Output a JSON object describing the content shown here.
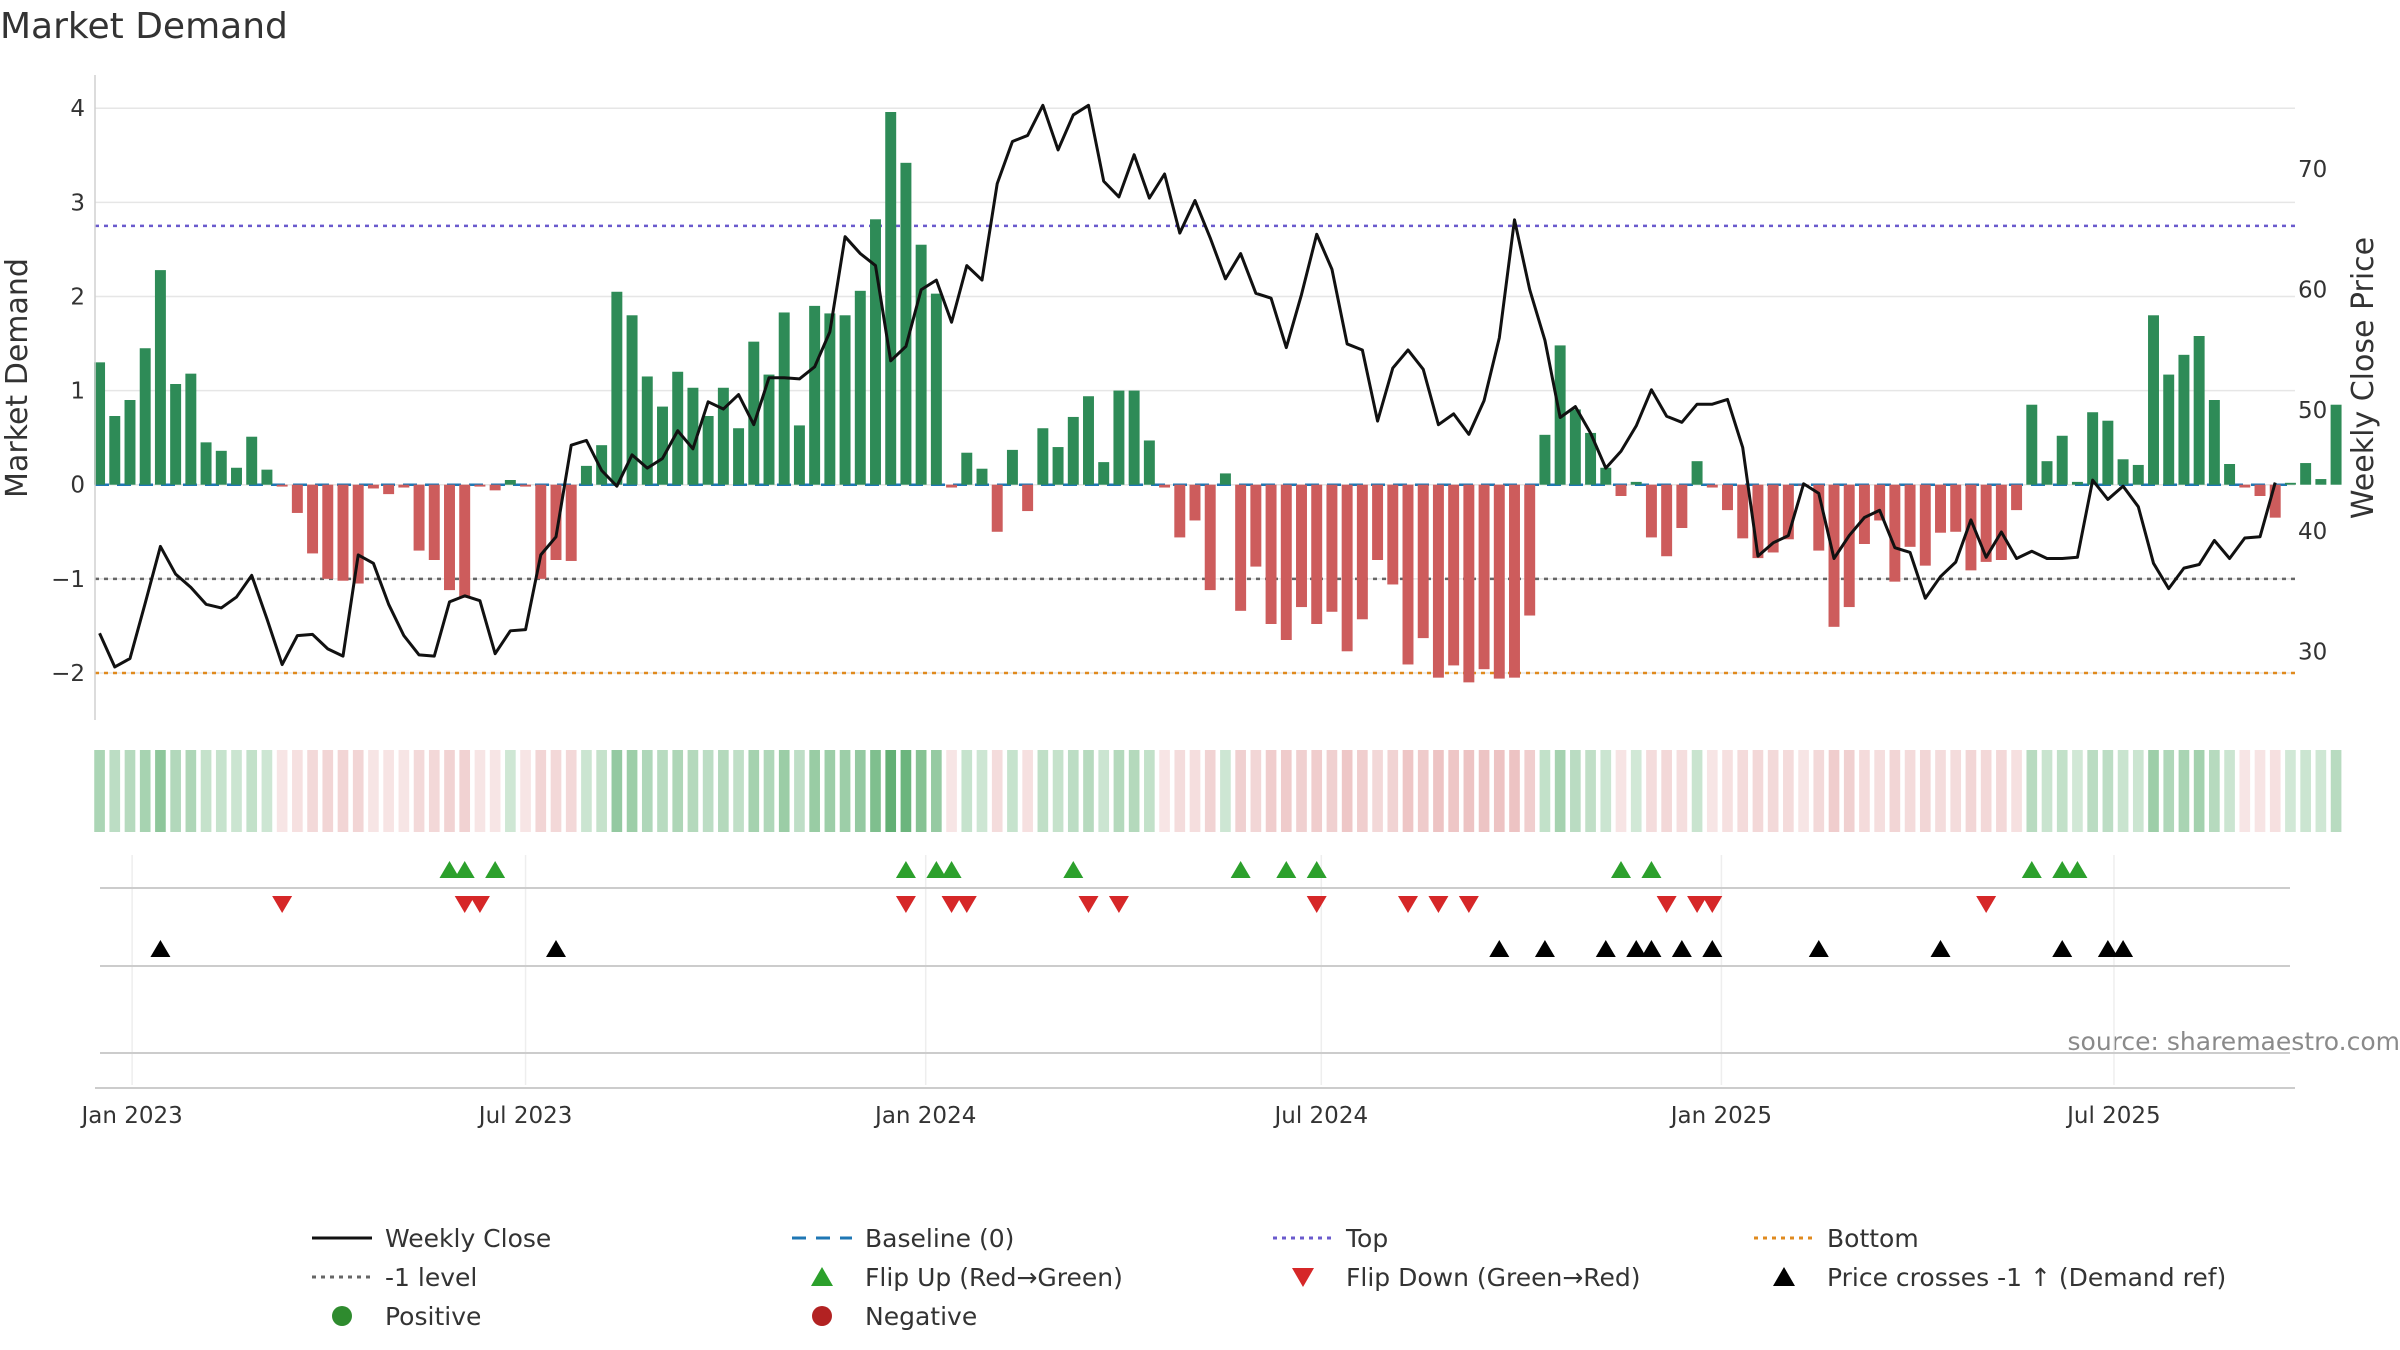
{
  "chart_data": {
    "type": "bar",
    "title": "Market Demand",
    "ylabel_left": "Market Demand",
    "ylabel_right": "Weekly Close Price",
    "source": "source: sharemaestro.com",
    "ylim_left": [
      -2.5,
      4.3
    ],
    "ylim_right": [
      24.3,
      77.4
    ],
    "yticks_left": [
      {
        "v": 4,
        "label": "4"
      },
      {
        "v": 3,
        "label": "3"
      },
      {
        "v": 2,
        "label": "2"
      },
      {
        "v": 1,
        "label": "1"
      },
      {
        "v": 0,
        "label": "0"
      },
      {
        "v": -1,
        "label": "−1"
      },
      {
        "v": -2,
        "label": "−2"
      }
    ],
    "yticks_right": [
      {
        "v": 70,
        "label": "70"
      },
      {
        "v": 60,
        "label": "60"
      },
      {
        "v": 50,
        "label": "50"
      },
      {
        "v": 40,
        "label": "40"
      },
      {
        "v": 30,
        "label": "30"
      }
    ],
    "x_start": "2022-12-25",
    "x_range_weeks": [
      -0.3,
      144.3
    ],
    "xticks": [
      {
        "label": "Jan 2023",
        "week": 2.14
      },
      {
        "label": "Jul 2023",
        "week": 28.0
      },
      {
        "label": "Jan 2024",
        "week": 54.3
      },
      {
        "label": "Jul 2024",
        "week": 80.3
      },
      {
        "label": "Jan 2025",
        "week": 106.6
      },
      {
        "label": "Jul 2025",
        "week": 132.4
      }
    ],
    "reference_lines": [
      {
        "name": "Baseline (0)",
        "value": 0,
        "color": "#1f77b4",
        "style": "dashed"
      },
      {
        "name": "Top",
        "value": 2.75,
        "color": "#6a5acd",
        "style": "dotted"
      },
      {
        "name": "-1 level",
        "value": -1,
        "color": "#666666",
        "style": "dotted"
      },
      {
        "name": "Bottom",
        "value": -2.0,
        "color": "#e08a1e",
        "style": "dotted"
      }
    ],
    "demand": [
      1.3,
      0.73,
      0.9,
      1.45,
      2.28,
      1.07,
      1.18,
      0.45,
      0.36,
      0.18,
      0.51,
      0.16,
      -0.02,
      -0.3,
      -0.73,
      -1.0,
      -1.02,
      -1.05,
      -0.04,
      -0.1,
      -0.03,
      -0.7,
      -0.8,
      -1.12,
      -1.2,
      -0.02,
      -0.06,
      0.05,
      -0.02,
      -1.0,
      -0.8,
      -0.81,
      0.2,
      0.42,
      2.05,
      1.8,
      1.15,
      0.83,
      1.2,
      1.03,
      0.73,
      1.03,
      0.6,
      1.52,
      1.17,
      1.83,
      0.63,
      1.9,
      1.82,
      1.8,
      2.06,
      2.82,
      3.96,
      3.42,
      2.55,
      2.03,
      -0.03,
      0.34,
      0.17,
      -0.5,
      0.37,
      -0.28,
      0.6,
      0.4,
      0.72,
      0.94,
      0.24,
      1.0,
      1.0,
      0.47,
      -0.03,
      -0.56,
      -0.38,
      -1.12,
      0.12,
      -1.34,
      -0.87,
      -1.48,
      -1.65,
      -1.3,
      -1.48,
      -1.35,
      -1.77,
      -1.43,
      -0.8,
      -1.06,
      -1.91,
      -1.63,
      -2.05,
      -1.92,
      -2.1,
      -1.96,
      -2.06,
      -2.05,
      -1.39,
      0.53,
      1.48,
      0.8,
      0.55,
      0.18,
      -0.12,
      0.03,
      -0.56,
      -0.76,
      -0.46,
      0.25,
      -0.03,
      -0.27,
      -0.57,
      -0.78,
      -0.72,
      -0.58,
      -0.01,
      -0.7,
      -1.51,
      -1.3,
      -0.63,
      -0.38,
      -1.03,
      -0.66,
      -0.86,
      -0.51,
      -0.5,
      -0.91,
      -0.82,
      -0.8,
      -0.27,
      0.85,
      0.25,
      0.52,
      0.03,
      0.77,
      0.68,
      0.27,
      0.21,
      1.8,
      1.17,
      1.38,
      1.58,
      0.9,
      0.22,
      -0.03,
      -0.12,
      -0.35,
      0.02,
      0.23,
      0.06,
      0.85
    ],
    "weekly_close": [
      31.5,
      28.7,
      29.4,
      34.0,
      38.7,
      36.4,
      35.3,
      33.9,
      33.6,
      34.5,
      36.3,
      32.7,
      28.9,
      31.3,
      31.4,
      30.2,
      29.6,
      38.0,
      37.3,
      33.9,
      31.3,
      29.7,
      29.6,
      34.1,
      34.6,
      34.2,
      29.8,
      31.7,
      31.8,
      38.0,
      39.5,
      47.1,
      47.5,
      45.0,
      43.7,
      46.3,
      45.2,
      46.0,
      48.3,
      46.8,
      50.7,
      50.1,
      51.3,
      48.8,
      52.7,
      52.7,
      52.6,
      53.6,
      56.5,
      64.4,
      63.0,
      62.0,
      54.1,
      55.3,
      60.0,
      60.8,
      57.3,
      62.0,
      60.8,
      68.8,
      72.3,
      72.8,
      75.3,
      71.6,
      74.5,
      75.3,
      69.0,
      67.7,
      71.2,
      67.6,
      69.6,
      64.7,
      67.4,
      64.3,
      60.9,
      63.0,
      59.7,
      59.3,
      55.2,
      59.6,
      64.6,
      61.7,
      55.5,
      55.0,
      49.1,
      53.5,
      55.0,
      53.4,
      48.8,
      49.7,
      48.0,
      50.8,
      56.0,
      65.8,
      60.0,
      55.8,
      49.4,
      50.3,
      48.1,
      45.2,
      46.6,
      48.7,
      51.7,
      49.5,
      49.0,
      50.5,
      50.5,
      50.9,
      46.9,
      37.9,
      39.0,
      39.6,
      43.9,
      43.1,
      37.7,
      39.6,
      41.1,
      41.7,
      38.6,
      38.2,
      34.4,
      36.2,
      37.4,
      40.9,
      37.8,
      39.9,
      37.7,
      38.3,
      37.7,
      37.7,
      37.8,
      44.2,
      42.6,
      43.7,
      42.0,
      37.3,
      35.2,
      36.9,
      37.2,
      39.2,
      37.7,
      39.4,
      39.5,
      44.0
    ],
    "flip_up_weeks": [
      23,
      24,
      26,
      53,
      55,
      56,
      64,
      75,
      78,
      80,
      100,
      102,
      127,
      129,
      130
    ],
    "flip_down_weeks": [
      12,
      24,
      25,
      53,
      56,
      57,
      65,
      67,
      80,
      86,
      88,
      90,
      103,
      105,
      106,
      124
    ],
    "price_cross_weeks": [
      4,
      30,
      92,
      95,
      99,
      101,
      102,
      104,
      106,
      113,
      121,
      129,
      132,
      133
    ],
    "legend": [
      {
        "label": "Weekly Close",
        "marker": "solid-line",
        "color": "#111111"
      },
      {
        "label": "Baseline (0)",
        "marker": "dashed-line",
        "color": "#1f77b4"
      },
      {
        "label": "Top",
        "marker": "dotted-line",
        "color": "#6a5acd"
      },
      {
        "label": "Bottom",
        "marker": "dotted-line",
        "color": "#e08a1e"
      },
      {
        "label": "-1 level",
        "marker": "dotted-line",
        "color": "#666666"
      },
      {
        "label": "Flip Up (Red→Green)",
        "marker": "triangle-up",
        "color": "#2ca02c"
      },
      {
        "label": "Flip Down (Green→Red)",
        "marker": "triangle-down",
        "color": "#d62728"
      },
      {
        "label": "Price crosses -1 ↑ (Demand ref)",
        "marker": "triangle-up",
        "color": "#000000"
      },
      {
        "label": "Positive",
        "marker": "circle",
        "color": "#2e8b2e"
      },
      {
        "label": "Negative",
        "marker": "circle",
        "color": "#b22222"
      }
    ],
    "colors": {
      "positive_bar": "#2e8b57",
      "negative_bar": "#cd5c5c",
      "price_line": "#111111",
      "grid": "#e6e6e6",
      "flip_up": "#2ca02c",
      "flip_down": "#d62728",
      "cross": "#000000"
    }
  }
}
